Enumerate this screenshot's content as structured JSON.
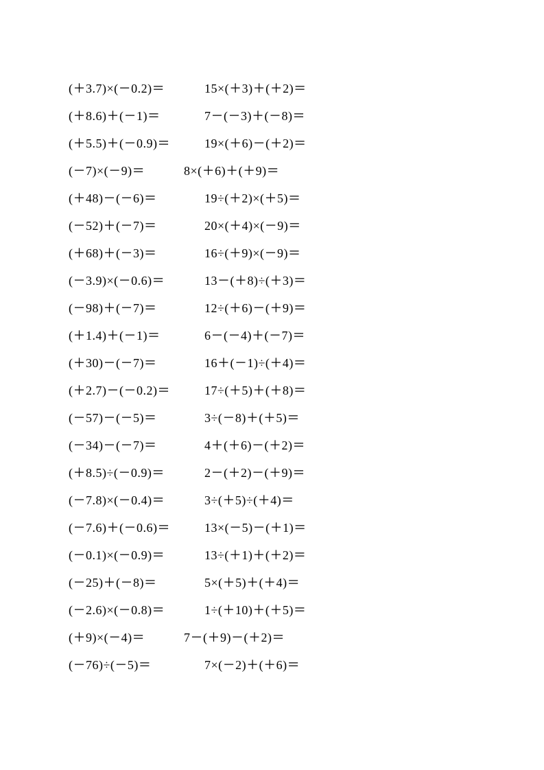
{
  "worksheet": {
    "type": "math-problems",
    "font_family": "Times New Roman, SimSun, serif",
    "font_size": 18,
    "text_color": "#000000",
    "background_color": "#ffffff",
    "line_spacing": 22,
    "columns": [
      {
        "problems": [
          "(＋3.7)×(－0.2)＝",
          "(＋8.6)＋(－1)＝",
          "(＋5.5)＋(－0.9)＝",
          "(－7)×(－9)＝",
          "(＋48)－(－6)＝",
          "(－52)＋(－7)＝",
          "(＋68)＋(－3)＝",
          "(－3.9)×(－0.6)＝",
          "(－98)＋(－7)＝",
          "(＋1.4)＋(－1)＝",
          "(＋30)－(－7)＝",
          "(＋2.7)－(－0.2)＝",
          "(－57)－(－5)＝",
          "(－34)－(－7)＝",
          "(＋8.5)÷(－0.9)＝",
          "(－7.8)×(－0.4)＝",
          "(－7.6)＋(－0.6)＝",
          "(－0.1)×(－0.9)＝",
          "(－25)＋(－8)＝",
          "(－2.6)×(－0.8)＝",
          "(＋9)×(－4)＝",
          "(－76)÷(－5)＝"
        ]
      },
      {
        "problems": [
          "15×(＋3)＋(＋2)＝",
          "7－(－3)＋(－8)＝",
          "19×(＋6)－(＋2)＝",
          "8×(＋6)＋(＋9)＝",
          "19÷(＋2)×(＋5)＝",
          "20×(＋4)×(－9)＝",
          "16÷(＋9)×(－9)＝",
          "13－(＋8)÷(＋3)＝",
          "12÷(＋6)－(＋9)＝",
          "6－(－4)＋(－7)＝",
          "16＋(－1)÷(＋4)＝",
          "17÷(＋5)＋(＋8)＝",
          "3÷(－8)＋(＋5)＝",
          "4＋(＋6)－(＋2)＝",
          "2－(＋2)－(＋9)＝",
          "3÷(＋5)÷(＋4)＝",
          "13×(－5)－(＋1)＝",
          "13÷(＋1)＋(＋2)＝",
          "5×(＋5)＋(＋4)＝",
          "1÷(＋10)＋(＋5)＝",
          "7－(＋9)－(＋2)＝",
          "7×(－2)＋(＋6)＝"
        ]
      }
    ]
  }
}
